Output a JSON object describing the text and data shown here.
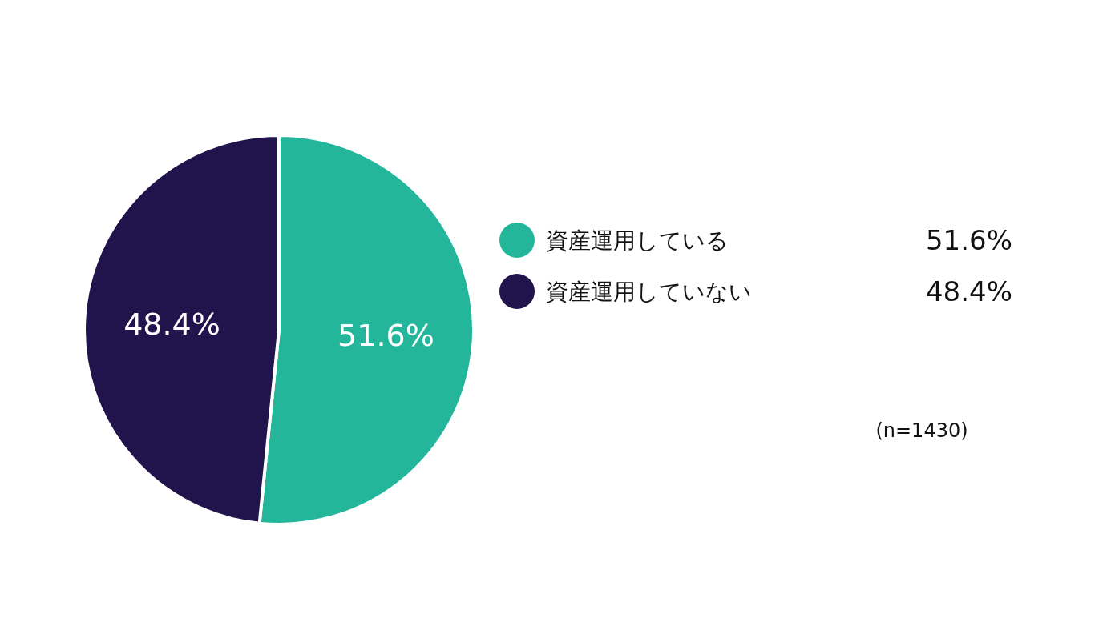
{
  "chart_data": {
    "type": "pie",
    "categories": [
      "資産運用している",
      "資産運用していない"
    ],
    "values": [
      51.6,
      48.4
    ],
    "colors": [
      "#23b69a",
      "#21134b"
    ],
    "value_labels": [
      "51.6%",
      "48.4%"
    ],
    "legend": "right",
    "annotations": [
      "(n=1430)"
    ]
  }
}
